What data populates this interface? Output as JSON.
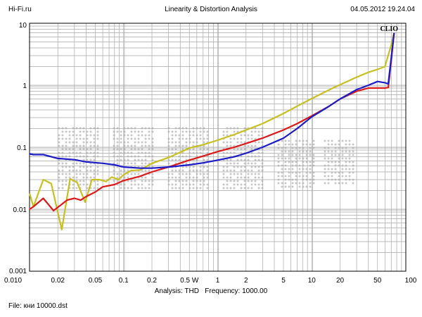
{
  "header": {
    "left": "Hi-Fi.ru",
    "center": "Linearity & Distortion Analysis",
    "right": "04.05.2012 19.24.04"
  },
  "footer": {
    "analysis_label": "Analysis: THD",
    "frequency_label": "Frequency: 1000.00",
    "file_label": "File: кни 10000.dst"
  },
  "watermark": "CLIO",
  "colors": {
    "red": "#dd1a1a",
    "blue": "#1c1cc8",
    "yellow": "#c8c020",
    "grid": "#a8a8a8",
    "watermark_dots": "#c8c8c8"
  },
  "chart_data": {
    "type": "line",
    "title": "Linearity & Distortion Analysis",
    "xlabel": "",
    "ylabel": "",
    "x_scale": "log",
    "y_scale": "log",
    "xlim": [
      0.01,
      100
    ],
    "ylim": [
      0.001,
      10
    ],
    "grid": true,
    "x_ticks": [
      {
        "value": 0.01,
        "label": "0.010"
      },
      {
        "value": 0.02,
        "label": "0.02"
      },
      {
        "value": 0.05,
        "label": "0.05"
      },
      {
        "value": 0.1,
        "label": "0.1"
      },
      {
        "value": 0.2,
        "label": "0.2"
      },
      {
        "value": 0.5,
        "label": "0.5 W"
      },
      {
        "value": 1,
        "label": "1"
      },
      {
        "value": 2,
        "label": "2"
      },
      {
        "value": 5,
        "label": "5"
      },
      {
        "value": 10,
        "label": "10"
      },
      {
        "value": 20,
        "label": "20"
      },
      {
        "value": 50,
        "label": "50"
      },
      {
        "value": 100,
        "label": "100"
      }
    ],
    "y_ticks": [
      {
        "value": 10,
        "label": "10"
      },
      {
        "value": 1,
        "label": "1"
      },
      {
        "value": 0.1,
        "label": "0.1"
      },
      {
        "value": 0.01,
        "label": "0.01"
      },
      {
        "value": 0.001,
        "label": "0.001"
      }
    ],
    "series": [
      {
        "color": "#c8c020",
        "points": [
          [
            0.01,
            0.018
          ],
          [
            0.011,
            0.011
          ],
          [
            0.014,
            0.03
          ],
          [
            0.017,
            0.026
          ],
          [
            0.022,
            0.0047
          ],
          [
            0.027,
            0.031
          ],
          [
            0.032,
            0.027
          ],
          [
            0.039,
            0.013
          ],
          [
            0.046,
            0.03
          ],
          [
            0.055,
            0.03
          ],
          [
            0.065,
            0.028
          ],
          [
            0.075,
            0.033
          ],
          [
            0.088,
            0.03
          ],
          [
            0.1,
            0.036
          ],
          [
            0.12,
            0.042
          ],
          [
            0.15,
            0.043
          ],
          [
            0.2,
            0.055
          ],
          [
            0.3,
            0.068
          ],
          [
            0.5,
            0.097
          ],
          [
            0.7,
            0.11
          ],
          [
            1,
            0.13
          ],
          [
            1.5,
            0.16
          ],
          [
            2,
            0.19
          ],
          [
            3,
            0.24
          ],
          [
            5,
            0.35
          ],
          [
            7,
            0.46
          ],
          [
            10,
            0.61
          ],
          [
            15,
            0.83
          ],
          [
            20,
            1.02
          ],
          [
            30,
            1.35
          ],
          [
            40,
            1.62
          ],
          [
            50,
            1.8
          ],
          [
            60,
            2.0
          ],
          [
            70,
            4.5
          ],
          [
            75,
            7.0
          ]
        ]
      },
      {
        "color": "#dd1a1a",
        "points": [
          [
            0.01,
            0.01
          ],
          [
            0.011,
            0.011
          ],
          [
            0.014,
            0.015
          ],
          [
            0.018,
            0.0095
          ],
          [
            0.022,
            0.012
          ],
          [
            0.025,
            0.014
          ],
          [
            0.03,
            0.015
          ],
          [
            0.035,
            0.014
          ],
          [
            0.04,
            0.016
          ],
          [
            0.05,
            0.019
          ],
          [
            0.06,
            0.023
          ],
          [
            0.07,
            0.024
          ],
          [
            0.08,
            0.025
          ],
          [
            0.1,
            0.029
          ],
          [
            0.15,
            0.034
          ],
          [
            0.2,
            0.04
          ],
          [
            0.3,
            0.048
          ],
          [
            0.5,
            0.062
          ],
          [
            0.7,
            0.072
          ],
          [
            1,
            0.085
          ],
          [
            1.5,
            0.1
          ],
          [
            2,
            0.115
          ],
          [
            3,
            0.14
          ],
          [
            5,
            0.19
          ],
          [
            7,
            0.24
          ],
          [
            10,
            0.32
          ],
          [
            15,
            0.45
          ],
          [
            20,
            0.6
          ],
          [
            30,
            0.8
          ],
          [
            40,
            0.9
          ],
          [
            60,
            0.9
          ],
          [
            65,
            0.92
          ],
          [
            70,
            2.5
          ],
          [
            75,
            7.0
          ]
        ]
      },
      {
        "color": "#1c1cc8",
        "points": [
          [
            0.01,
            0.078
          ],
          [
            0.011,
            0.076
          ],
          [
            0.014,
            0.076
          ],
          [
            0.02,
            0.066
          ],
          [
            0.03,
            0.063
          ],
          [
            0.04,
            0.058
          ],
          [
            0.06,
            0.055
          ],
          [
            0.08,
            0.052
          ],
          [
            0.1,
            0.048
          ],
          [
            0.15,
            0.046
          ],
          [
            0.2,
            0.046
          ],
          [
            0.3,
            0.048
          ],
          [
            0.5,
            0.052
          ],
          [
            0.7,
            0.056
          ],
          [
            1,
            0.062
          ],
          [
            1.5,
            0.07
          ],
          [
            2,
            0.08
          ],
          [
            3,
            0.1
          ],
          [
            5,
            0.14
          ],
          [
            7,
            0.2
          ],
          [
            10,
            0.31
          ],
          [
            15,
            0.45
          ],
          [
            20,
            0.6
          ],
          [
            30,
            0.85
          ],
          [
            40,
            1.0
          ],
          [
            50,
            1.15
          ],
          [
            60,
            1.1
          ],
          [
            65,
            1.05
          ],
          [
            68,
            1.9
          ],
          [
            72,
            4.0
          ],
          [
            75,
            7.0
          ]
        ]
      }
    ]
  }
}
